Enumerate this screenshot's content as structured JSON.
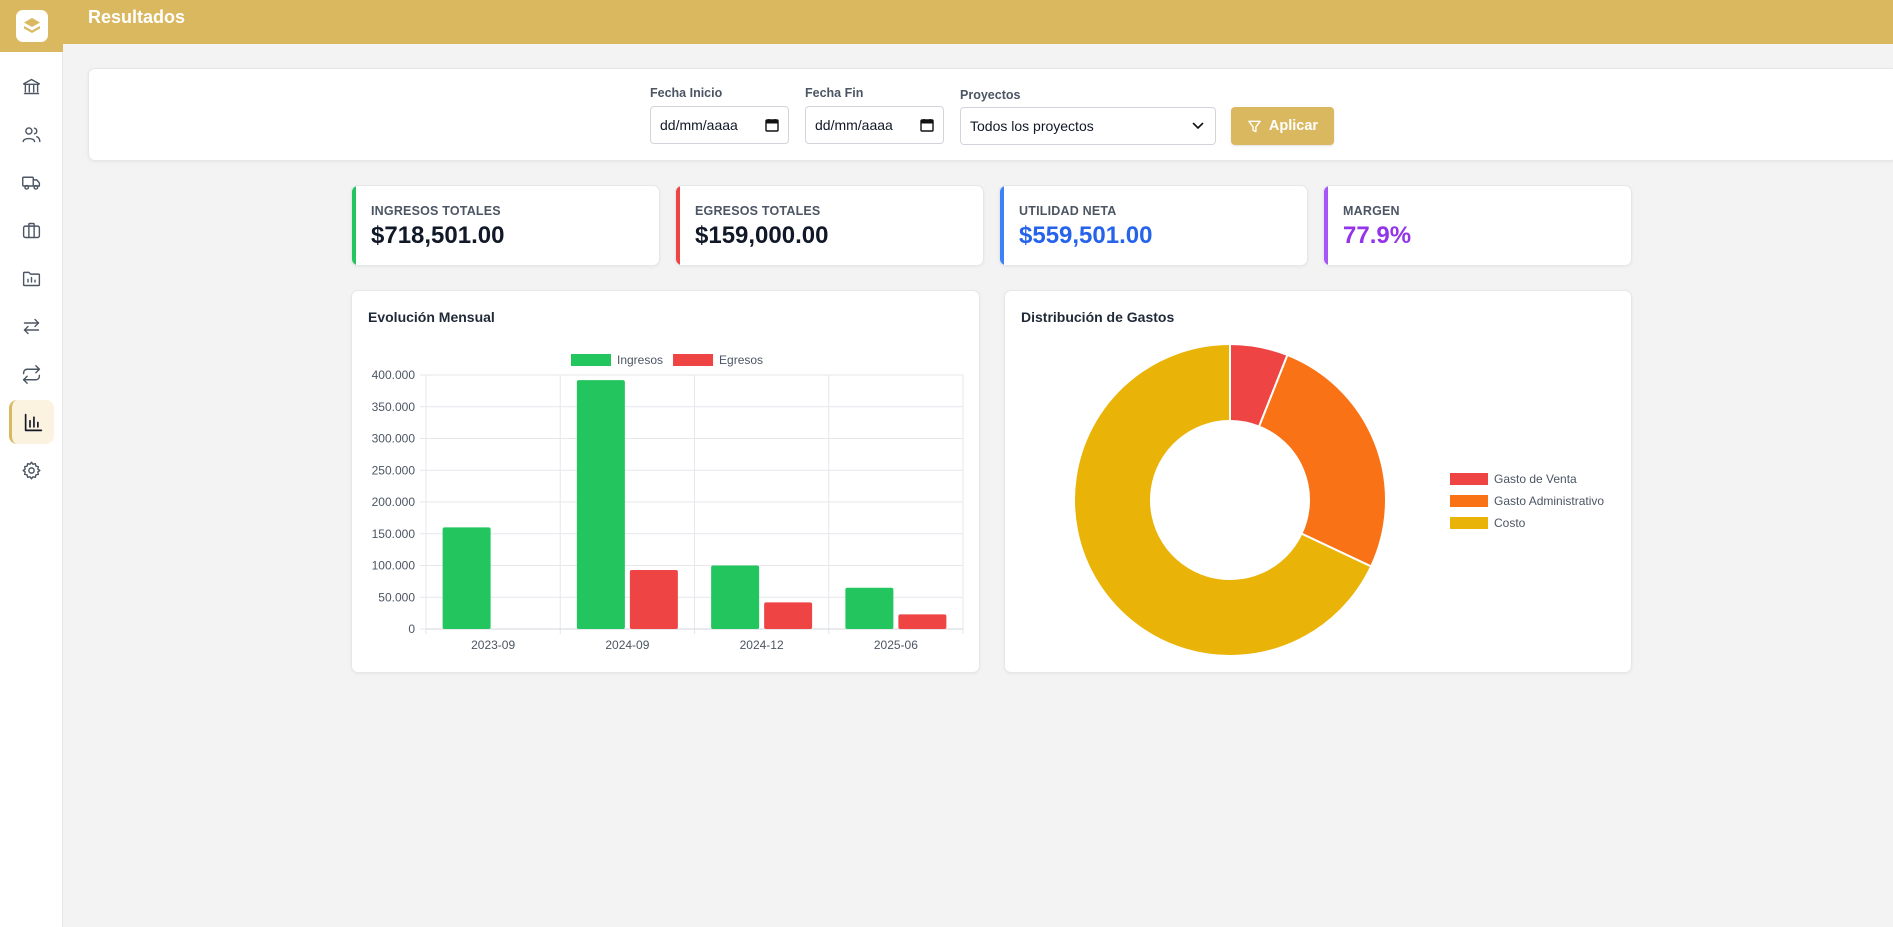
{
  "header": {
    "title": "Resultados"
  },
  "sidebar": {
    "items": [
      {
        "icon": "bank-icon",
        "active": false
      },
      {
        "icon": "users-icon",
        "active": false
      },
      {
        "icon": "truck-icon",
        "active": false
      },
      {
        "icon": "briefcase-icon",
        "active": false
      },
      {
        "icon": "folder-chart-icon",
        "active": false
      },
      {
        "icon": "arrows-swap-icon",
        "active": false
      },
      {
        "icon": "repeat-icon",
        "active": false
      },
      {
        "icon": "bar-chart-icon",
        "active": true
      },
      {
        "icon": "gear-icon",
        "active": false
      }
    ]
  },
  "filters": {
    "start_label": "Fecha Inicio",
    "start_value": "dd/mm/aaaa",
    "end_label": "Fecha Fin",
    "end_value": "dd/mm/aaaa",
    "projects_label": "Proyectos",
    "projects_value": "Todos los proyectos",
    "apply_label": "Aplicar"
  },
  "kpis": [
    {
      "label": "INGRESOS TOTALES",
      "value": "$718,501.00",
      "accent": "#22c55e",
      "value_color": "#111827"
    },
    {
      "label": "EGRESOS TOTALES",
      "value": "$159,000.00",
      "accent": "#ef4444",
      "value_color": "#111827"
    },
    {
      "label": "UTILIDAD NETA",
      "value": "$559,501.00",
      "accent": "#3b82f6",
      "value_color": "#2563eb"
    },
    {
      "label": "MARGEN",
      "value": "77.9%",
      "accent": "#a855f7",
      "value_color": "#9333ea"
    }
  ],
  "colors": {
    "brand": "#d9b85f"
  },
  "chart_data": [
    {
      "type": "bar",
      "title": "Evolución Mensual",
      "categories": [
        "2023-09",
        "2024-09",
        "2024-12",
        "2025-06"
      ],
      "series": [
        {
          "name": "Ingresos",
          "color": "#22c55e",
          "values": [
            160000,
            392000,
            100000,
            65000
          ]
        },
        {
          "name": "Egresos",
          "color": "#ef4444",
          "values": [
            0,
            93000,
            42000,
            23000
          ]
        }
      ],
      "ylim": [
        0,
        400000
      ],
      "yticks": [
        "0",
        "50.000",
        "100.000",
        "150.000",
        "200.000",
        "250.000",
        "300.000",
        "350.000",
        "400.000"
      ],
      "legend": "top",
      "grid": true
    },
    {
      "type": "pie",
      "title": "Distribución de Gastos",
      "labels": [
        "Gasto de Venta",
        "Gasto Administrativo",
        "Costo"
      ],
      "values": [
        6,
        26,
        68
      ],
      "colors": [
        "#ef4444",
        "#f97316",
        "#eab308"
      ],
      "legend": "right"
    }
  ]
}
